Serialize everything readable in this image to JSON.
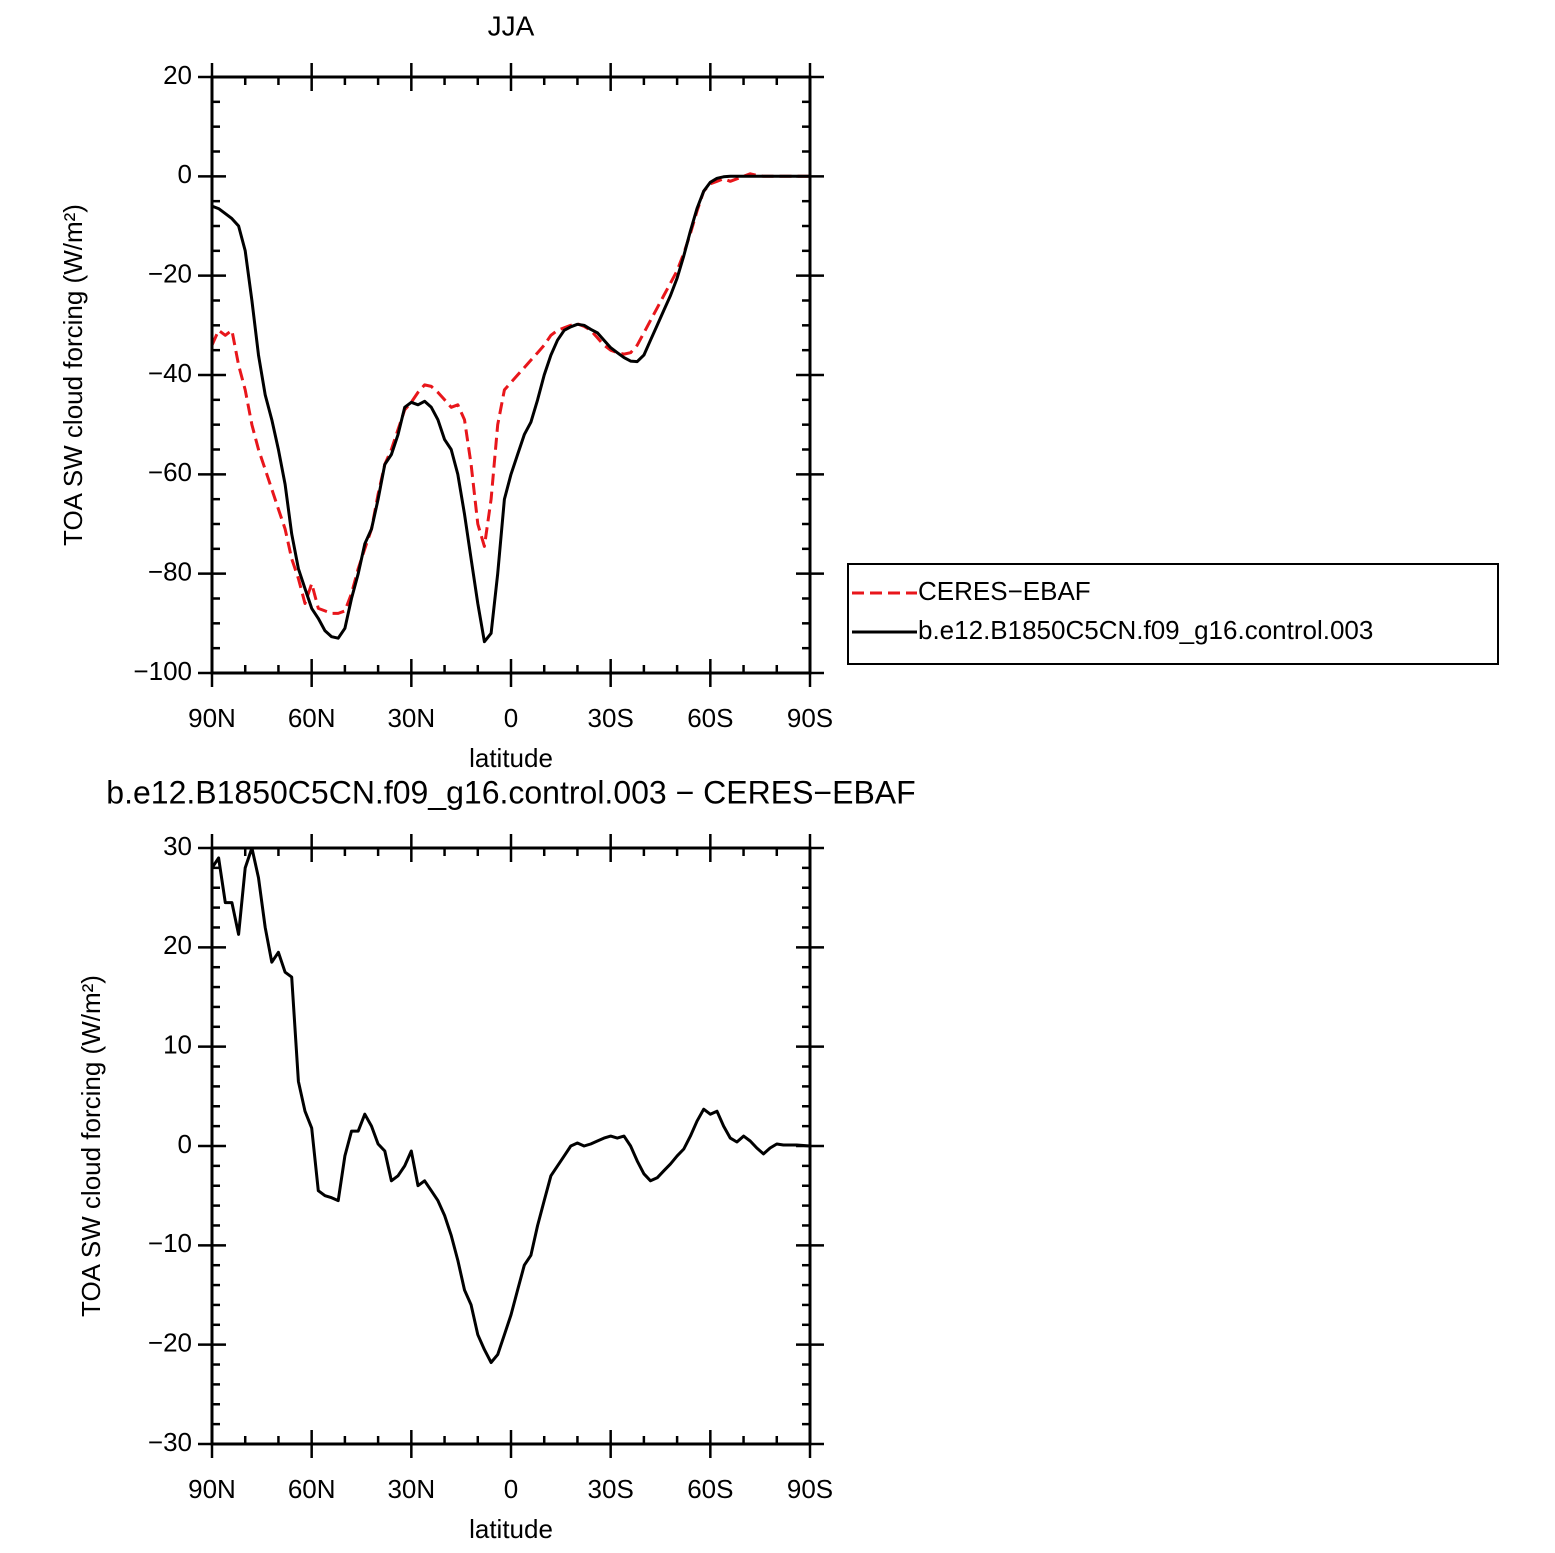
{
  "chart_data": [
    {
      "type": "line",
      "title": "JJA",
      "xlabel": "latitude",
      "ylabel": "TOA SW cloud forcing (W/m²)",
      "xlim": [
        90,
        -90
      ],
      "ylim": [
        -100,
        20
      ],
      "xticks": [
        {
          "value": 90,
          "label": "90N"
        },
        {
          "value": 60,
          "label": "60N"
        },
        {
          "value": 30,
          "label": "30N"
        },
        0,
        {
          "value": -30,
          "label": "30S"
        },
        {
          "value": -60,
          "label": "60S"
        },
        {
          "value": -90,
          "label": "90S"
        }
      ],
      "yticks": [
        {
          "value": -100,
          "label": "−100"
        },
        {
          "value": -80,
          "label": "−80"
        },
        {
          "value": -60,
          "label": "−60"
        },
        {
          "value": -40,
          "label": "−40"
        },
        {
          "value": -20,
          "label": "−20"
        },
        0,
        20
      ],
      "legend": "right",
      "x": [
        90,
        88,
        86,
        84,
        82,
        80,
        78,
        76,
        74,
        72,
        70,
        68,
        66,
        64,
        62,
        60,
        58,
        56,
        54,
        52,
        50,
        48,
        46,
        44,
        42,
        40,
        38,
        36,
        34,
        32,
        30,
        28,
        26,
        24,
        22,
        20,
        18,
        16,
        14,
        12,
        10,
        8,
        6,
        4,
        2,
        0,
        -2,
        -4,
        -6,
        -8,
        -10,
        -12,
        -14,
        -16,
        -18,
        -20,
        -22,
        -24,
        -26,
        -28,
        -30,
        -32,
        -34,
        -36,
        -38,
        -40,
        -42,
        -44,
        -46,
        -48,
        -50,
        -52,
        -54,
        -56,
        -58,
        -60,
        -62,
        -64,
        -66,
        -68,
        -70,
        -72,
        -74,
        -76,
        -78,
        -80,
        -82,
        -84,
        -86,
        -88,
        -90
      ],
      "series": [
        {
          "name": "CERES−EBAF",
          "color": "#e8161b",
          "style": "dashed",
          "values": [
            -34,
            -31,
            -32,
            -31,
            -38,
            -43,
            -50,
            -55,
            -59,
            -63,
            -67,
            -71,
            -77,
            -81,
            -86,
            -82,
            -87,
            -87.5,
            -88,
            -88,
            -87.5,
            -84,
            -79,
            -75,
            -71,
            -64,
            -58,
            -55,
            -51,
            -47,
            -45.5,
            -43.5,
            -42,
            -42.3,
            -43.5,
            -45,
            -46.5,
            -46,
            -49,
            -58,
            -70,
            -74.5,
            -65,
            -50,
            -43,
            -41.5,
            -40,
            -38.5,
            -37,
            -35.5,
            -34,
            -32,
            -31,
            -30.5,
            -30,
            -29.7,
            -30.2,
            -31,
            -32.5,
            -34,
            -35,
            -35.5,
            -35.8,
            -35.5,
            -34,
            -31.5,
            -29,
            -26.5,
            -24,
            -21.5,
            -19,
            -15.5,
            -11.5,
            -7,
            -3,
            -1.5,
            -1,
            -0.5,
            -1,
            -0.5,
            0,
            0.5,
            0.2,
            0,
            0,
            0,
            0,
            0,
            0,
            0,
            0
          ]
        },
        {
          "name": "b.e12.B1850C5CN.f09_g16.control.003",
          "color": "#000000",
          "style": "solid",
          "values": [
            -6,
            -6.5,
            -7.5,
            -8.5,
            -10,
            -15,
            -25,
            -36,
            -44,
            -49,
            -55,
            -62,
            -72,
            -79,
            -83,
            -87,
            -89,
            -91.5,
            -92.7,
            -93,
            -91,
            -85,
            -80,
            -74,
            -71,
            -65,
            -58,
            -56,
            -52,
            -46.5,
            -45.5,
            -46,
            -45.3,
            -46.5,
            -49,
            -53,
            -55,
            -60,
            -68,
            -77,
            -86,
            -93.7,
            -92,
            -80,
            -65,
            -60,
            -56,
            -52,
            -49.5,
            -45,
            -40,
            -36,
            -33,
            -31,
            -30.3,
            -29.8,
            -30,
            -30.8,
            -31.5,
            -33,
            -34.5,
            -35.5,
            -36.5,
            -37.2,
            -37.3,
            -36,
            -33,
            -30,
            -27,
            -24,
            -20.5,
            -16,
            -11,
            -6.5,
            -3,
            -1.2,
            -0.4,
            -0.1,
            0,
            0,
            0,
            0,
            0,
            0,
            0,
            0,
            0,
            0,
            0,
            0,
            0
          ]
        }
      ]
    },
    {
      "type": "line",
      "title": "b.e12.B1850C5CN.f09_g16.control.003 − CERES−EBAF",
      "xlabel": "latitude",
      "ylabel": "TOA SW cloud forcing (W/m²)",
      "xlim": [
        90,
        -90
      ],
      "ylim": [
        -30,
        30
      ],
      "xticks": [
        {
          "value": 90,
          "label": "90N"
        },
        {
          "value": 60,
          "label": "60N"
        },
        {
          "value": 30,
          "label": "30N"
        },
        0,
        {
          "value": -30,
          "label": "30S"
        },
        {
          "value": -60,
          "label": "60S"
        },
        {
          "value": -90,
          "label": "90S"
        }
      ],
      "yticks": [
        {
          "value": -30,
          "label": "−30"
        },
        {
          "value": -20,
          "label": "−20"
        },
        {
          "value": -10,
          "label": "−10"
        },
        0,
        10,
        20,
        30
      ],
      "color": "#000000",
      "x": [
        90,
        88,
        86,
        84,
        82,
        80,
        78,
        76,
        74,
        72,
        70,
        68,
        66,
        64,
        62,
        60,
        58,
        56,
        54,
        52,
        50,
        48,
        46,
        44,
        42,
        40,
        38,
        36,
        34,
        32,
        30,
        28,
        26,
        24,
        22,
        20,
        18,
        16,
        14,
        12,
        10,
        8,
        6,
        4,
        2,
        0,
        -2,
        -4,
        -6,
        -8,
        -10,
        -12,
        -14,
        -16,
        -18,
        -20,
        -22,
        -24,
        -26,
        -28,
        -30,
        -32,
        -34,
        -36,
        -38,
        -40,
        -42,
        -44,
        -46,
        -48,
        -50,
        -52,
        -54,
        -56,
        -58,
        -60,
        -62,
        -64,
        -66,
        -68,
        -70,
        -72,
        -74,
        -76,
        -78,
        -80,
        -82,
        -84,
        -86,
        -88,
        -90
      ],
      "values": [
        28,
        29,
        24.5,
        24.5,
        21.3,
        28,
        30,
        27,
        22,
        18.5,
        19.5,
        17.5,
        17,
        6.5,
        3.5,
        1.8,
        -4.5,
        -5,
        -5.2,
        -5.5,
        -1,
        1.5,
        1.5,
        3.2,
        2,
        0.2,
        -0.5,
        -3.5,
        -3,
        -2,
        -0.5,
        -4,
        -3.5,
        -4.5,
        -5.5,
        -7,
        -9,
        -11.5,
        -14.5,
        -16,
        -19,
        -20.5,
        -21.8,
        -21,
        -19,
        -17,
        -14.5,
        -12,
        -11,
        -8,
        -5.5,
        -3,
        -2,
        -1,
        0,
        0.3,
        0,
        0.2,
        0.5,
        0.8,
        1,
        0.8,
        1,
        0,
        -1.5,
        -2.8,
        -3.5,
        -3.2,
        -2.5,
        -1.8,
        -1,
        -0.3,
        1,
        2.5,
        3.7,
        3.2,
        3.5,
        2,
        0.8,
        0.4,
        1,
        0.5,
        -0.2,
        -0.8,
        -0.2,
        0.2,
        0.1,
        0.1,
        0.1,
        0.05,
        0
      ]
    }
  ]
}
